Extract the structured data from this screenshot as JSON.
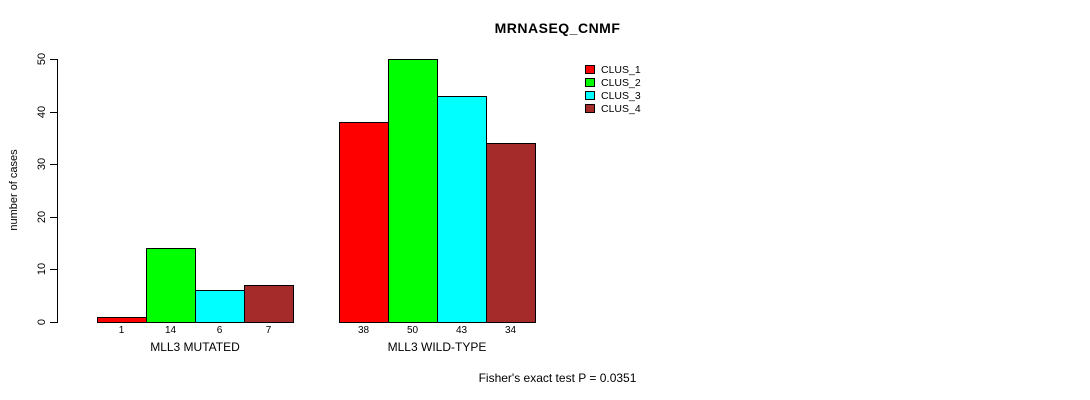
{
  "chart_data": {
    "type": "bar",
    "title": "MRNASEQ_CNMF",
    "ylabel": "number of cases",
    "xlabel": "",
    "ylim": [
      0,
      50
    ],
    "yticks": [
      0,
      10,
      20,
      30,
      40,
      50
    ],
    "grid": false,
    "legend_position": "top-right",
    "categories": [
      "MLL3 MUTATED",
      "MLL3 WILD-TYPE"
    ],
    "series": [
      {
        "name": "CLUS_1",
        "color": "#FF0000",
        "values": [
          1,
          38
        ]
      },
      {
        "name": "CLUS_2",
        "color": "#00FF00",
        "values": [
          14,
          50
        ]
      },
      {
        "name": "CLUS_3",
        "color": "#00FFFF",
        "values": [
          6,
          43
        ]
      },
      {
        "name": "CLUS_4",
        "color": "#A52A2A",
        "values": [
          7,
          34
        ]
      }
    ],
    "groups": [
      {
        "label": "MLL3 MUTATED",
        "values": [
          1,
          14,
          6,
          7
        ]
      },
      {
        "label": "MLL3 WILD-TYPE",
        "values": [
          38,
          50,
          43,
          34
        ]
      }
    ],
    "bar_border_color": "#000000",
    "show_value_labels": true,
    "annotation": "Fisher's exact test P = 0.0351"
  }
}
